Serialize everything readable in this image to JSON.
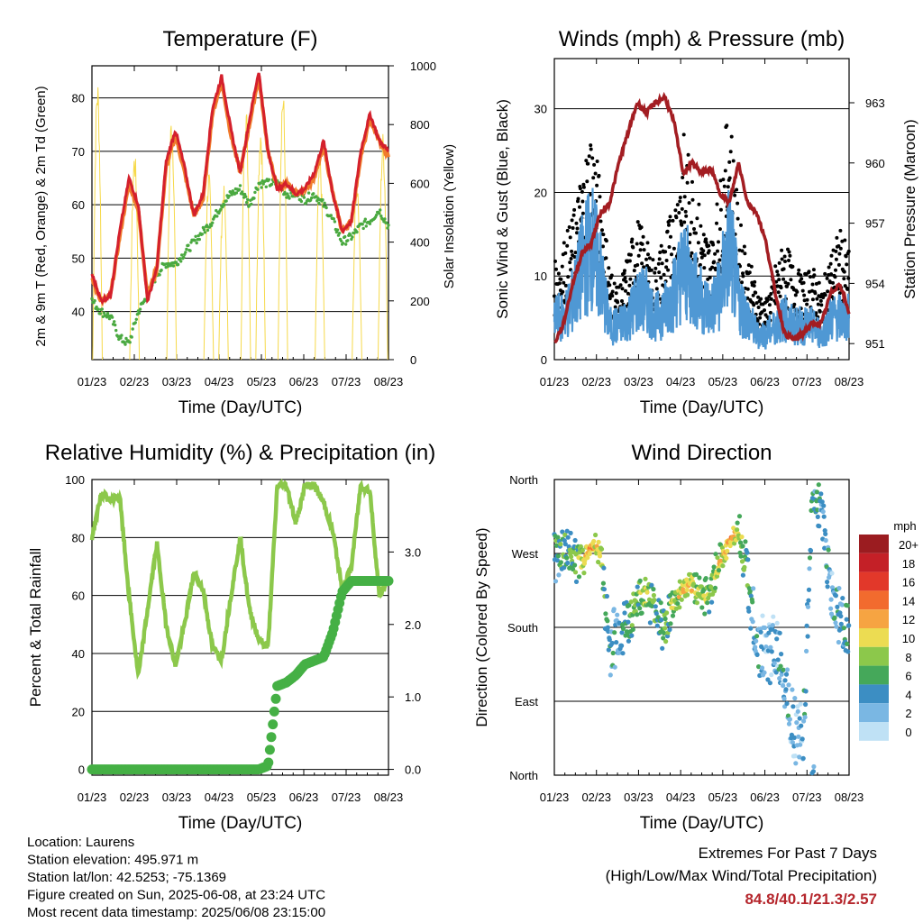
{
  "time_ticks": [
    "01/23",
    "02/23",
    "03/23",
    "04/23",
    "05/23",
    "06/23",
    "07/23",
    "08/23"
  ],
  "info": {
    "location": "Location: Laurens",
    "elevation": "Station elevation: 495.971 m",
    "latlon": "Station lat/lon: 42.5253; -75.1369",
    "created": "Figure created on Sun, 2025-06-08, at 23:24 UTC",
    "recent": "Most recent data timestamp: 2025/06/08 23:15:00"
  },
  "extremes": {
    "line1": "Extremes For Past 7 Days",
    "line2": "(High/Low/Max Wind/Total Precipitation)",
    "values": "84.8/40.1/21.3/2.57"
  },
  "colors": {
    "temp_2m": "#d4202c",
    "temp_9m": "#f07c2c",
    "dewpoint": "#4aa940",
    "solar": "#f6d94a",
    "gust": "#000000",
    "wind": "#4f98d4",
    "pressure": "#a31d22",
    "rh": "#8cc84b",
    "precip": "#45b045"
  },
  "chart_data": [
    {
      "type": "line",
      "title": "Temperature (F)",
      "xlabel": "Time (Day/UTC)",
      "ylabel": "2m & 9m T (Red, Orange) & 2m Td (Green)",
      "ylabel_right": "Solar Insolation (Yellow)",
      "x_ticks": [
        "01/23",
        "02/23",
        "03/23",
        "04/23",
        "05/23",
        "06/23",
        "07/23",
        "08/23"
      ],
      "ylim": [
        31,
        86
      ],
      "yticks": [
        40,
        50,
        60,
        70,
        80
      ],
      "ylim_right": [
        0,
        1000
      ],
      "yticks_right": [
        0,
        200,
        400,
        600,
        800,
        1000
      ],
      "x": [
        0,
        0.25,
        0.5,
        0.75,
        1,
        1.25,
        1.5,
        1.75,
        2,
        2.25,
        2.5,
        2.75,
        3,
        3.25,
        3.5,
        3.75,
        4,
        4.25,
        4.5,
        4.75,
        5,
        5.25,
        5.5,
        5.75,
        6,
        6.25,
        6.5,
        6.75,
        7,
        7.25,
        7.5,
        7.75,
        8
      ],
      "series": [
        {
          "name": "2m T",
          "values": [
            47,
            42,
            43,
            55,
            65,
            60,
            42,
            48,
            68,
            74,
            67,
            58,
            62,
            78,
            84,
            74,
            66,
            76,
            85,
            70,
            63,
            64,
            62,
            63,
            66,
            72,
            62,
            55,
            57,
            70,
            77,
            72,
            70
          ]
        },
        {
          "name": "9m T",
          "values": [
            46,
            42,
            43,
            54,
            64,
            59,
            43,
            48,
            67,
            73,
            66,
            58,
            61,
            77,
            83,
            73,
            66,
            75,
            84,
            70,
            63,
            64,
            62,
            63,
            65,
            71,
            62,
            55,
            57,
            69,
            76,
            72,
            69
          ]
        },
        {
          "name": "2m Td",
          "values": [
            42,
            40,
            39,
            35,
            34,
            40,
            43,
            47,
            49,
            49,
            51,
            53,
            55,
            57,
            60,
            62,
            63,
            60,
            64,
            64,
            64,
            62,
            62,
            61,
            62,
            60,
            57,
            53,
            54,
            56,
            57,
            59,
            56
          ]
        },
        {
          "name": "Solar",
          "axis": "right",
          "peaks": [
            0.15,
            1.15,
            2.15,
            3.15,
            3.55,
            4.15,
            4.55,
            5.15,
            6.15,
            7.15,
            7.85
          ],
          "peak_values": [
            970,
            720,
            850,
            650,
            600,
            900,
            820,
            940,
            700,
            640,
            780
          ]
        }
      ]
    },
    {
      "type": "line",
      "title": "Winds (mph) & Pressure (mb)",
      "xlabel": "Time (Day/UTC)",
      "ylabel": "Sonic Wind & Gust (Blue, Black)",
      "ylabel_right": "Station Pressure (Maroon)",
      "x_ticks": [
        "01/23",
        "02/23",
        "03/23",
        "04/23",
        "05/23",
        "06/23",
        "07/23",
        "08/23"
      ],
      "ylim": [
        0,
        36
      ],
      "yticks": [
        0,
        10,
        20,
        30
      ],
      "ylim_right": [
        950.2,
        965.2
      ],
      "yticks_right": [
        951,
        954,
        957,
        960,
        963
      ],
      "x": [
        0,
        0.25,
        0.5,
        0.75,
        1,
        1.25,
        1.5,
        1.75,
        2,
        2.25,
        2.5,
        2.75,
        3,
        3.25,
        3.5,
        3.75,
        4,
        4.25,
        4.5,
        4.75,
        5,
        5.25,
        5.5,
        5.75,
        6,
        6.25,
        6.5,
        6.75,
        7,
        7.25,
        7.5,
        7.75,
        8
      ],
      "series": [
        {
          "name": "Gust",
          "values": [
            8,
            10,
            12,
            16,
            20,
            15,
            8,
            6,
            9,
            12,
            10,
            8,
            11,
            13,
            19,
            16,
            12,
            10,
            15,
            22,
            12,
            9,
            6,
            5,
            8,
            10,
            8,
            7,
            8,
            6,
            9,
            11,
            9
          ]
        },
        {
          "name": "Wind",
          "values": [
            5,
            5,
            7,
            11,
            14,
            10,
            4,
            4,
            5,
            7,
            7,
            5,
            6,
            8,
            11,
            9,
            7,
            6,
            8,
            14,
            7,
            5,
            3,
            3,
            4,
            5,
            4,
            4,
            4,
            3,
            5,
            5,
            5
          ]
        },
        {
          "name": "Pressure",
          "axis": "right",
          "values": [
            951,
            952,
            954,
            955.5,
            956,
            957.5,
            958,
            960,
            961.5,
            963,
            962.5,
            963,
            963.3,
            962,
            959.5,
            960,
            959.5,
            959.7,
            958.5,
            958,
            960,
            958,
            957.5,
            956,
            953.5,
            951.5,
            951.2,
            951.5,
            952,
            952,
            953.5,
            954,
            952.5
          ]
        }
      ]
    },
    {
      "type": "line",
      "title": "Relative Humidity (%) & Precipitation (in)",
      "xlabel": "Time (Day/UTC)",
      "ylabel": "Percent & Total Rainfall",
      "x_ticks": [
        "01/23",
        "02/23",
        "03/23",
        "04/23",
        "05/23",
        "06/23",
        "07/23",
        "08/23"
      ],
      "ylim": [
        -2,
        100
      ],
      "yticks": [
        0,
        20,
        40,
        60,
        80,
        100
      ],
      "ylim_right": [
        -0.08,
        4.0
      ],
      "yticks_right": [
        0.0,
        1.0,
        2.0,
        3.0
      ],
      "yticklabels_right": [
        "0.0",
        "1.0",
        "2.0",
        "3.0"
      ],
      "x": [
        0,
        0.25,
        0.5,
        0.75,
        1,
        1.25,
        1.5,
        1.75,
        2,
        2.25,
        2.5,
        2.75,
        3,
        3.25,
        3.5,
        3.75,
        4,
        4.25,
        4.5,
        4.75,
        5,
        5.25,
        5.5,
        5.75,
        6,
        6.25,
        6.5,
        6.75,
        7,
        7.25,
        7.5,
        7.75,
        8
      ],
      "series": [
        {
          "name": "RH",
          "values": [
            80,
            95,
            93,
            94,
            60,
            32,
            55,
            78,
            50,
            36,
            50,
            68,
            62,
            42,
            38,
            60,
            80,
            55,
            45,
            42,
            98,
            98,
            85,
            98,
            98,
            92,
            82,
            62,
            70,
            98,
            96,
            60,
            65
          ]
        },
        {
          "name": "Precip",
          "axis": "right",
          "values": [
            0,
            0,
            0,
            0,
            0,
            0,
            0,
            0,
            0,
            0,
            0,
            0,
            0,
            0,
            0,
            0,
            0,
            0,
            0,
            0.05,
            1.15,
            1.2,
            1.3,
            1.45,
            1.5,
            1.55,
            1.9,
            2.45,
            2.6,
            2.6,
            2.6,
            2.6,
            2.6
          ]
        }
      ]
    },
    {
      "type": "scatter",
      "title": "Wind Direction",
      "xlabel": "Time (Day/UTC)",
      "ylabel": "Direction (Colored By Speed)",
      "x_ticks": [
        "01/23",
        "02/23",
        "03/23",
        "04/23",
        "05/23",
        "06/23",
        "07/23",
        "08/23"
      ],
      "y_ticks": [
        "North",
        "East",
        "South",
        "West",
        "North"
      ],
      "ylim": [
        0,
        360
      ],
      "legend_title": "mph",
      "legend_labels": [
        "20+",
        "18",
        "16",
        "14",
        "12",
        "10",
        "8",
        "6",
        "4",
        "2",
        "0"
      ],
      "legend_colors": [
        "#9b1c20",
        "#c42027",
        "#e2382a",
        "#f26b2e",
        "#f6a442",
        "#ecdc52",
        "#8cc84b",
        "#45a85a",
        "#3c8ec3",
        "#7ab7e3",
        "#bfe1f5"
      ],
      "x": [
        0,
        0.25,
        0.5,
        0.75,
        1,
        1.25,
        1.5,
        1.75,
        2,
        2.25,
        2.5,
        2.75,
        3,
        3.25,
        3.5,
        3.75,
        4,
        4.25,
        4.5,
        4.75,
        5,
        5.25,
        5.5,
        5.75,
        6,
        6.25,
        6.5,
        6.75,
        7,
        7.25,
        7.5,
        7.75,
        8
      ],
      "values": [
        270,
        275,
        270,
        260,
        280,
        275,
        150,
        175,
        185,
        215,
        220,
        200,
        180,
        210,
        225,
        230,
        220,
        225,
        260,
        285,
        300,
        240,
        160,
        140,
        160,
        120,
        60,
        40,
        340,
        330,
        220,
        190,
        180
      ],
      "speeds": [
        5,
        5,
        6,
        8,
        12,
        8,
        4,
        3,
        5,
        7,
        8,
        6,
        5,
        8,
        10,
        9,
        8,
        7,
        9,
        12,
        8,
        5,
        3,
        2,
        3,
        3,
        2,
        3,
        5,
        4,
        3,
        4,
        5
      ]
    }
  ]
}
